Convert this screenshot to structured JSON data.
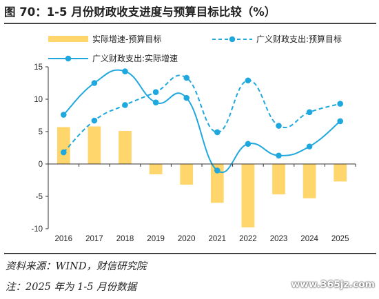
{
  "title": "图 70：1-5 月份财政收支进度与预算目标比较（%）",
  "source": "资料来源：WIND，财信研究院",
  "note": "注：2025 年为 1-5 月份数据",
  "watermark": "www.365jz.com",
  "colors": {
    "bar": "#FFD66B",
    "line": "#1FA8DE",
    "axis": "#333333"
  },
  "chart_data": {
    "type": "bar+line",
    "categories": [
      "2016",
      "2017",
      "2018",
      "2019",
      "2020",
      "2021",
      "2022",
      "2023",
      "2024",
      "2025"
    ],
    "ylim": [
      -10,
      15
    ],
    "yticks": [
      15,
      10,
      5,
      0,
      -5,
      -10
    ],
    "series": [
      {
        "name": "实际增速-预算目标",
        "kind": "bar",
        "values": [
          5.7,
          5.8,
          5.1,
          -1.6,
          -3.2,
          -6.0,
          -9.8,
          -4.7,
          -5.3,
          -2.7
        ]
      },
      {
        "name": "广义财政支出:预算目标",
        "kind": "line-dashed",
        "values": [
          1.8,
          6.7,
          9.1,
          11.1,
          13.3,
          4.9,
          12.9,
          5.9,
          8.0,
          9.3
        ]
      },
      {
        "name": "广义财政支出:实际增速",
        "kind": "line-solid",
        "values": [
          7.6,
          12.5,
          14.3,
          9.5,
          10.2,
          -1.0,
          3.1,
          1.3,
          2.7,
          6.6
        ]
      }
    ]
  }
}
